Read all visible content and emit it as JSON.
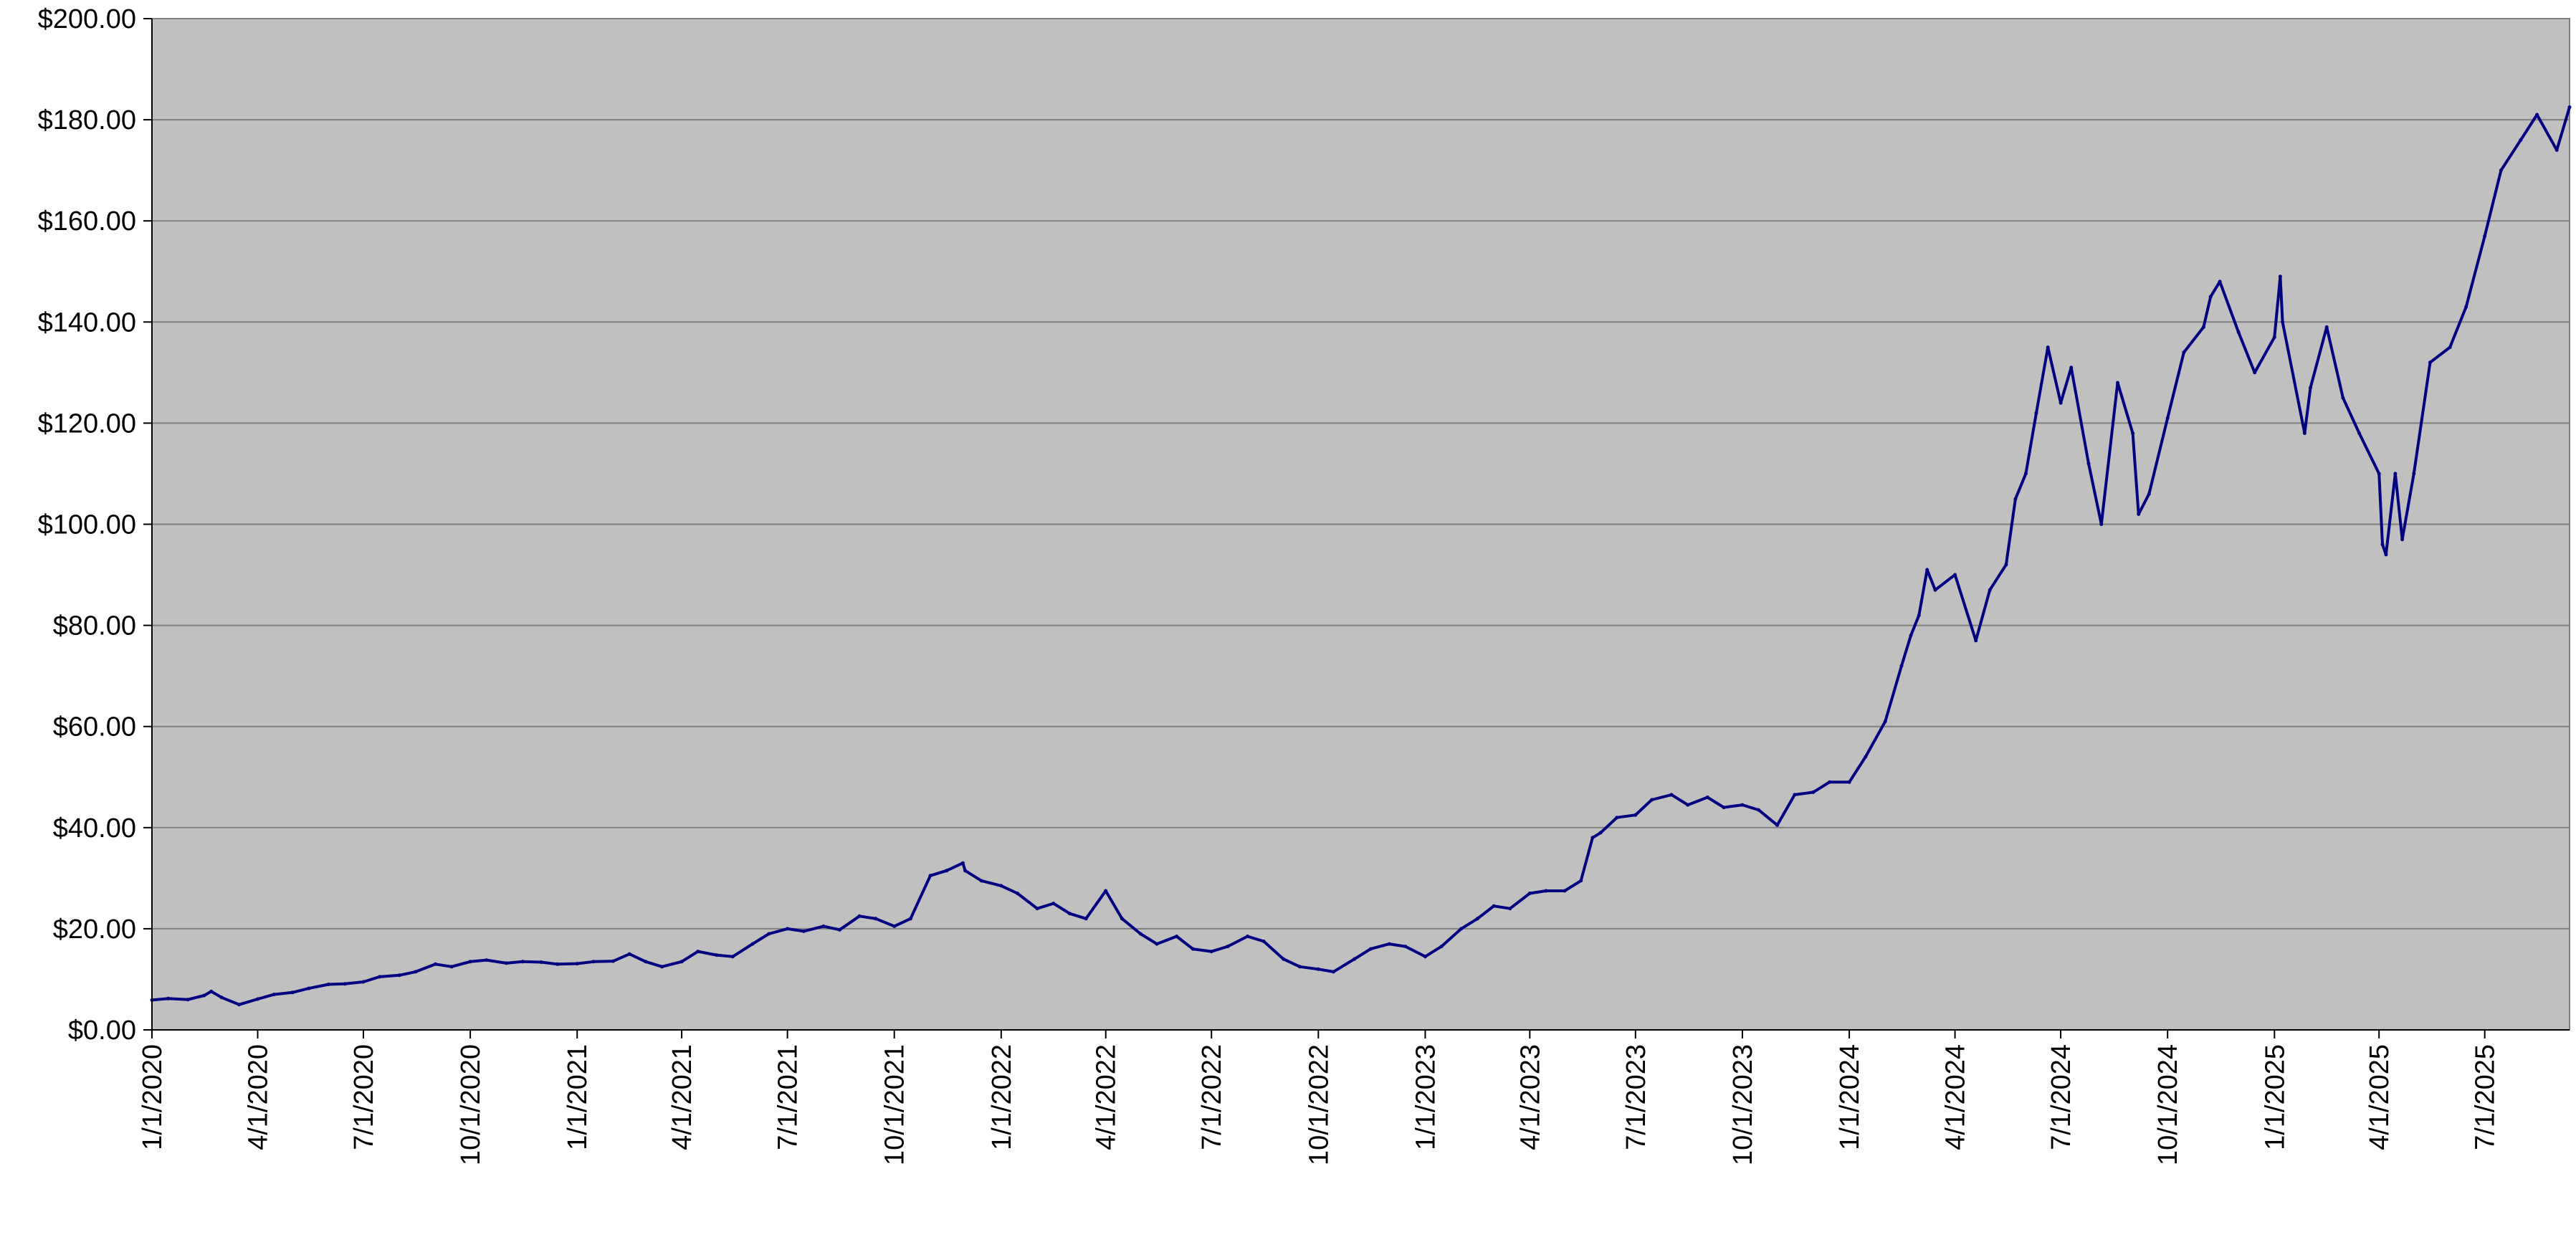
{
  "chart_data": {
    "type": "line",
    "title": "",
    "xlabel": "",
    "ylabel": "",
    "ylim": [
      0,
      200
    ],
    "y_ticks": [
      0,
      20,
      40,
      60,
      80,
      100,
      120,
      140,
      160,
      180,
      200
    ],
    "y_tick_labels": [
      "$0.00",
      "$20.00",
      "$40.00",
      "$60.00",
      "$80.00",
      "$100.00",
      "$120.00",
      "$140.00",
      "$160.00",
      "$180.00",
      "$200.00"
    ],
    "x_range": [
      "2020-01-01",
      "2025-09-12"
    ],
    "x_ticks": [
      "2020-01-01",
      "2020-04-01",
      "2020-07-01",
      "2020-10-01",
      "2021-01-01",
      "2021-04-01",
      "2021-07-01",
      "2021-10-01",
      "2022-01-01",
      "2022-04-01",
      "2022-07-01",
      "2022-10-01",
      "2023-01-01",
      "2023-04-01",
      "2023-07-01",
      "2023-10-01",
      "2024-01-01",
      "2024-04-01",
      "2024-07-01",
      "2024-10-01",
      "2025-01-01",
      "2025-04-01",
      "2025-07-01"
    ],
    "x_tick_labels": [
      "1/1/2020",
      "4/1/2020",
      "7/1/2020",
      "10/1/2020",
      "1/1/2021",
      "4/1/2021",
      "7/1/2021",
      "10/1/2021",
      "1/1/2022",
      "4/1/2022",
      "7/1/2022",
      "10/1/2022",
      "1/1/2023",
      "4/1/2023",
      "7/1/2023",
      "10/1/2023",
      "1/1/2024",
      "4/1/2024",
      "7/1/2024",
      "10/1/2024",
      "1/1/2025",
      "4/1/2025",
      "7/1/2025"
    ],
    "grid": true,
    "colors": {
      "plot_background": "#C0C0C0",
      "line": "#000080",
      "gridline": "#808080"
    },
    "series": [
      {
        "x": [
          "2020-01-01",
          "2020-01-15",
          "2020-02-01",
          "2020-02-15",
          "2020-02-21",
          "2020-03-01",
          "2020-03-16",
          "2020-04-01",
          "2020-04-15",
          "2020-05-01",
          "2020-05-15",
          "2020-06-01",
          "2020-06-15",
          "2020-07-01",
          "2020-07-15",
          "2020-08-01",
          "2020-08-15",
          "2020-09-01",
          "2020-09-15",
          "2020-10-01",
          "2020-10-15",
          "2020-11-01",
          "2020-11-15",
          "2020-12-01",
          "2020-12-15",
          "2021-01-01",
          "2021-01-15",
          "2021-02-01",
          "2021-02-15",
          "2021-03-01",
          "2021-03-15",
          "2021-04-01",
          "2021-04-15",
          "2021-05-01",
          "2021-05-15",
          "2021-06-01",
          "2021-06-15",
          "2021-07-01",
          "2021-07-15",
          "2021-08-01",
          "2021-08-15",
          "2021-09-01",
          "2021-09-15",
          "2021-10-01",
          "2021-10-15",
          "2021-11-01",
          "2021-11-15",
          "2021-11-29",
          "2021-12-01",
          "2021-12-15",
          "2022-01-01",
          "2022-01-15",
          "2022-02-01",
          "2022-02-15",
          "2022-03-01",
          "2022-03-15",
          "2022-04-01",
          "2022-04-15",
          "2022-05-01",
          "2022-05-15",
          "2022-06-01",
          "2022-06-15",
          "2022-07-01",
          "2022-07-15",
          "2022-08-01",
          "2022-08-15",
          "2022-09-01",
          "2022-09-15",
          "2022-10-01",
          "2022-10-14",
          "2022-11-01",
          "2022-11-15",
          "2022-12-01",
          "2022-12-15",
          "2023-01-01",
          "2023-01-15",
          "2023-02-01",
          "2023-02-15",
          "2023-03-01",
          "2023-03-15",
          "2023-04-01",
          "2023-04-15",
          "2023-05-01",
          "2023-05-15",
          "2023-05-25",
          "2023-06-01",
          "2023-06-15",
          "2023-07-01",
          "2023-07-15",
          "2023-08-01",
          "2023-08-15",
          "2023-09-01",
          "2023-09-15",
          "2023-10-01",
          "2023-10-15",
          "2023-10-31",
          "2023-11-15",
          "2023-12-01",
          "2023-12-15",
          "2024-01-01",
          "2024-01-15",
          "2024-02-01",
          "2024-02-15",
          "2024-02-23",
          "2024-03-01",
          "2024-03-08",
          "2024-03-15",
          "2024-04-01",
          "2024-04-19",
          "2024-05-01",
          "2024-05-15",
          "2024-05-23",
          "2024-06-01",
          "2024-06-10",
          "2024-06-20",
          "2024-07-01",
          "2024-07-10",
          "2024-07-25",
          "2024-08-05",
          "2024-08-19",
          "2024-09-01",
          "2024-09-06",
          "2024-09-15",
          "2024-10-01",
          "2024-10-15",
          "2024-11-01",
          "2024-11-07",
          "2024-11-15",
          "2024-12-01",
          "2024-12-15",
          "2025-01-01",
          "2025-01-06",
          "2025-01-08",
          "2025-01-27",
          "2025-02-01",
          "2025-02-15",
          "2025-03-01",
          "2025-03-15",
          "2025-04-01",
          "2025-04-04",
          "2025-04-07",
          "2025-04-15",
          "2025-04-21",
          "2025-05-01",
          "2025-05-15",
          "2025-06-01",
          "2025-06-15",
          "2025-07-01",
          "2025-07-15",
          "2025-08-01",
          "2025-08-15",
          "2025-09-01",
          "2025-09-12"
        ],
        "y": [
          5.9,
          6.2,
          6.0,
          6.8,
          7.6,
          6.4,
          5.0,
          6.1,
          7.0,
          7.4,
          8.2,
          9.0,
          9.1,
          9.5,
          10.5,
          10.8,
          11.5,
          13.0,
          12.5,
          13.5,
          13.8,
          13.2,
          13.5,
          13.4,
          13.0,
          13.1,
          13.5,
          13.6,
          15.0,
          13.5,
          12.5,
          13.5,
          15.5,
          14.8,
          14.5,
          17.0,
          19.0,
          20.0,
          19.5,
          20.5,
          19.8,
          22.5,
          22.0,
          20.5,
          22.0,
          30.5,
          31.5,
          33.0,
          31.5,
          29.5,
          28.5,
          27.0,
          24.0,
          25.0,
          23.0,
          22.0,
          27.5,
          22.0,
          19.0,
          17.0,
          18.5,
          16.0,
          15.5,
          16.5,
          18.5,
          17.5,
          14.0,
          12.5,
          12.0,
          11.5,
          14.0,
          16.0,
          17.0,
          16.5,
          14.5,
          16.5,
          20.0,
          22.0,
          24.5,
          24.0,
          27.0,
          27.5,
          27.5,
          29.5,
          38.0,
          39.0,
          42.0,
          42.5,
          45.5,
          46.5,
          44.5,
          46.0,
          44.0,
          44.5,
          43.5,
          40.5,
          46.5,
          47.0,
          49.0,
          49.0,
          54.0,
          61.0,
          72.0,
          78.0,
          82.0,
          91.0,
          87.0,
          90.0,
          77.0,
          87.0,
          92.0,
          105.0,
          110.0,
          122.0,
          135.0,
          124.0,
          131.0,
          112.0,
          100.0,
          128.0,
          118.0,
          102.0,
          106.0,
          121.0,
          134.0,
          139.0,
          145.0,
          148.0,
          138.0,
          130.0,
          137.0,
          149.0,
          140.0,
          118.0,
          127.0,
          139.0,
          125.0,
          118.0,
          110.0,
          96.0,
          94.0,
          110.0,
          97.0,
          110.0,
          132.0,
          135.0,
          143.0,
          157.0,
          170.0,
          176.0,
          181.0,
          174.0,
          182.5
        ]
      }
    ]
  }
}
